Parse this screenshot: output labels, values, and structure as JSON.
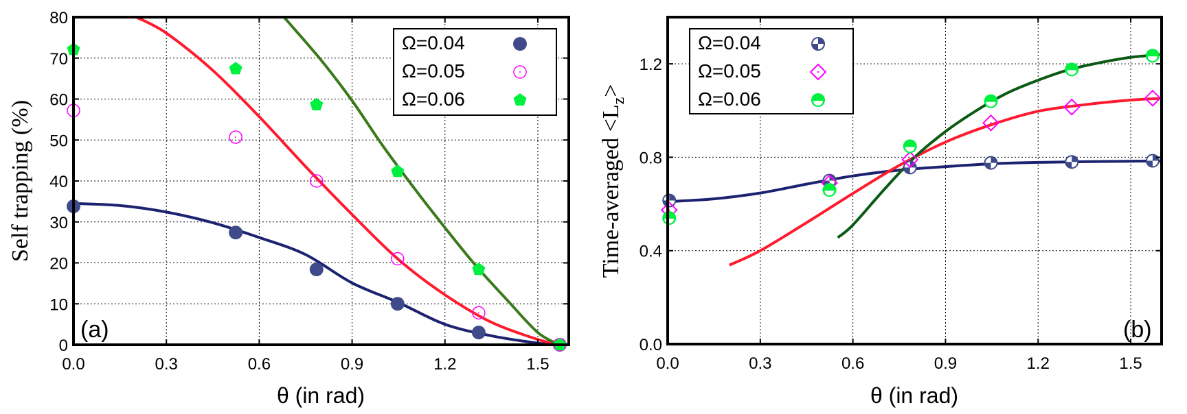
{
  "chart_data": [
    {
      "panel": "(a)",
      "type": "scatter",
      "title": "",
      "xlabel": "θ (in rad)",
      "ylabel": "Self trapping (%)",
      "xlim": [
        0.0,
        1.6
      ],
      "ylim": [
        0,
        80
      ],
      "xticks": [
        "0.0",
        "0.3",
        "0.6",
        "0.9",
        "1.2",
        "1.5"
      ],
      "xtick_values": [
        0.0,
        0.3,
        0.6,
        0.9,
        1.2,
        1.5
      ],
      "yticks": [
        "0",
        "10",
        "20",
        "30",
        "40",
        "50",
        "60",
        "70",
        "80"
      ],
      "ytick_values": [
        0,
        10,
        20,
        30,
        40,
        50,
        60,
        70,
        80
      ],
      "grid": true,
      "legend_position": "upper right",
      "series": [
        {
          "name": "Ω=0.04",
          "marker": "filled-circle",
          "marker_color": "#3f4a8a",
          "line_color": "#1c2270",
          "x": [
            0.0,
            0.524,
            0.785,
            1.047,
            1.309,
            1.571
          ],
          "values": [
            33.8,
            27.4,
            18.4,
            10.0,
            3.0,
            0.0
          ],
          "fit": {
            "x": [
              0.0,
              0.15,
              0.3,
              0.45,
              0.6,
              0.75,
              0.9,
              1.05,
              1.2,
              1.35,
              1.5,
              1.571
            ],
            "y": [
              34.5,
              34.0,
              32.4,
              29.8,
              26.2,
              22.0,
              15.1,
              10.3,
              5.0,
              2.2,
              0.4,
              0.0
            ]
          }
        },
        {
          "name": "Ω=0.05",
          "marker": "open-circle-dot",
          "marker_color": "#ff00ff",
          "line_color": "#ff1a2e",
          "x": [
            0.0,
            0.524,
            0.785,
            1.047,
            1.309,
            1.571
          ],
          "values": [
            57.2,
            50.7,
            40.0,
            21.0,
            7.8,
            0.0
          ],
          "fit": {
            "x": [
              0.203,
              0.3,
              0.45,
              0.6,
              0.75,
              0.9,
              1.05,
              1.2,
              1.35,
              1.5,
              1.571
            ],
            "y": [
              80.0,
              76.1,
              67.0,
              55.7,
              43.5,
              31.8,
              20.8,
              12.2,
              5.5,
              1.3,
              0.0
            ]
          }
        },
        {
          "name": "Ω=0.06",
          "marker": "filled-pentagon",
          "marker_color": "#00f040",
          "line_color": "#3a7a1c",
          "x": [
            0.0,
            0.524,
            0.785,
            1.047,
            1.309,
            1.571
          ],
          "values": [
            72.1,
            67.4,
            58.6,
            42.3,
            18.4,
            0.0
          ],
          "fit": {
            "x": [
              0.68,
              0.8,
              0.9,
              1.0,
              1.1,
              1.2,
              1.3,
              1.4,
              1.5,
              1.571
            ],
            "y": [
              80.0,
              69.5,
              59.6,
              48.5,
              38.3,
              28.6,
              19.3,
              11.0,
              3.0,
              0.0
            ]
          }
        }
      ]
    },
    {
      "panel": "(b)",
      "type": "scatter",
      "title": "",
      "xlabel": "θ (in rad)",
      "ylabel": "Time-averaged <Lz>",
      "xlim": [
        0.0,
        1.6
      ],
      "ylim": [
        0.0,
        1.4
      ],
      "xticks": [
        "0.0",
        "0.3",
        "0.6",
        "0.9",
        "1.2",
        "1.5"
      ],
      "xtick_values": [
        0.0,
        0.3,
        0.6,
        0.9,
        1.2,
        1.5
      ],
      "yticks": [
        "0.0",
        "0.4",
        "0.8",
        "1.2"
      ],
      "ytick_values": [
        0.0,
        0.4,
        0.8,
        1.2
      ],
      "grid": true,
      "legend_position": "upper left",
      "series": [
        {
          "name": "Ω=0.04",
          "marker": "quartered-circle",
          "marker_color": "#3f4a8a",
          "line_color": "#1c2270",
          "x": [
            0.005,
            0.524,
            0.785,
            1.047,
            1.309,
            1.571
          ],
          "values": [
            0.615,
            0.7,
            0.756,
            0.776,
            0.78,
            0.785
          ],
          "fit": {
            "x": [
              0.0,
              0.15,
              0.3,
              0.45,
              0.6,
              0.75,
              0.9,
              1.05,
              1.2,
              1.35,
              1.5,
              1.6
            ],
            "y": [
              0.61,
              0.622,
              0.647,
              0.685,
              0.72,
              0.745,
              0.76,
              0.772,
              0.778,
              0.781,
              0.783,
              0.784
            ]
          }
        },
        {
          "name": "Ω=0.05",
          "marker": "open-diamond-dot",
          "marker_color": "#ff00ff",
          "line_color": "#ff1a2e",
          "x": [
            0.005,
            0.524,
            0.785,
            1.047,
            1.309,
            1.571
          ],
          "values": [
            0.574,
            0.69,
            0.79,
            0.947,
            1.015,
            1.053
          ],
          "fit": {
            "x": [
              0.2,
              0.3,
              0.45,
              0.6,
              0.75,
              0.9,
              1.05,
              1.2,
              1.35,
              1.5,
              1.6
            ],
            "y": [
              0.338,
              0.4,
              0.52,
              0.645,
              0.765,
              0.865,
              0.94,
              0.997,
              1.025,
              1.045,
              1.052
            ]
          }
        },
        {
          "name": "Ω=0.06",
          "marker": "half-filled-circle",
          "marker_color": "#00f040",
          "line_color": "#0a5a14",
          "x": [
            0.005,
            0.524,
            0.785,
            1.047,
            1.309,
            1.571
          ],
          "values": [
            0.54,
            0.66,
            0.847,
            1.04,
            1.176,
            1.235
          ],
          "fit": {
            "x": [
              0.551,
              0.6,
              0.7,
              0.8,
              0.9,
              1.0,
              1.1,
              1.2,
              1.3,
              1.4,
              1.5,
              1.6
            ],
            "y": [
              0.456,
              0.51,
              0.66,
              0.8,
              0.91,
              1.0,
              1.075,
              1.13,
              1.175,
              1.205,
              1.228,
              1.24
            ]
          }
        }
      ]
    }
  ],
  "panels": {
    "a": {
      "label": "(a)",
      "xlabel": "θ (in rad)",
      "ylabel": "Self trapping (%)",
      "legend": [
        "Ω=0.04",
        "Ω=0.05",
        "Ω=0.06"
      ]
    },
    "b": {
      "label": "(b)",
      "xlabel": "θ (in rad)",
      "ylabel_main": "Time-averaged <L",
      "ylabel_sub": "z",
      "ylabel_end": ">",
      "legend": [
        "Ω=0.04",
        "Ω=0.05",
        "Ω=0.06"
      ]
    }
  }
}
